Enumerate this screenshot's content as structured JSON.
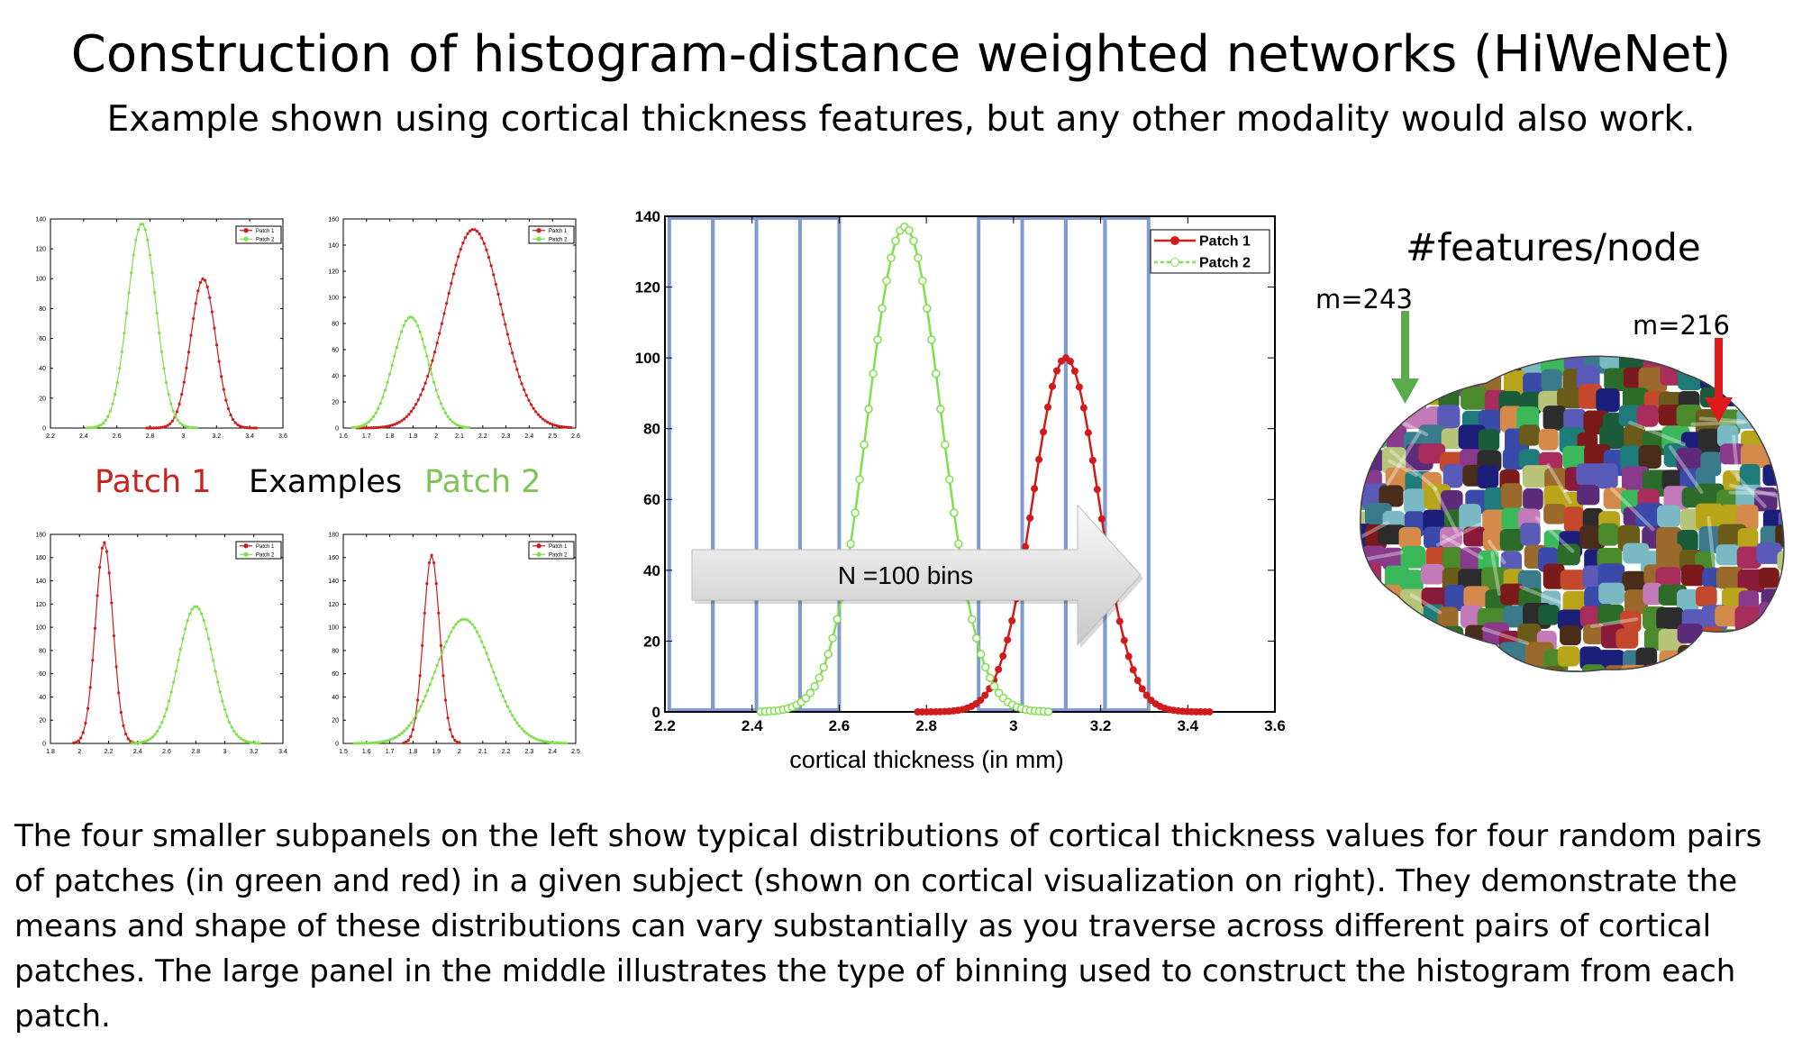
{
  "header": {
    "title": "Construction of histogram-distance weighted networks (HiWeNet)",
    "subtitle": "Example shown using cortical thickness features, but any other modality would also work."
  },
  "colors": {
    "patch1": "#d11a1a",
    "patch2": "#7ee04a",
    "bins": "#7f9bd0",
    "arrow_green": "#5aab4c",
    "arrow_red": "#e01a1a"
  },
  "left_panel": {
    "patch1_label": "Patch 1",
    "examples_label": "Examples",
    "patch2_label": "Patch 2"
  },
  "small_plots": [
    {
      "legend": [
        "Patch 1",
        "Patch 2"
      ],
      "xticks": [
        "2.2",
        "2.4",
        "2.6",
        "2.8",
        "3",
        "3.2",
        "3.4",
        "3.6"
      ],
      "yticks": [
        "0",
        "20",
        "40",
        "60",
        "80",
        "100",
        "120",
        "140"
      ]
    },
    {
      "legend": [
        "Patch 1",
        "Patch 2"
      ],
      "xticks": [
        "1.6",
        "1.7",
        "1.8",
        "1.9",
        "2",
        "2.1",
        "2.2",
        "2.3",
        "2.4",
        "2.5",
        "2.6"
      ],
      "yticks": [
        "0",
        "20",
        "40",
        "60",
        "80",
        "100",
        "120",
        "140",
        "160"
      ]
    },
    {
      "legend": [
        "Patch 1",
        "Patch 2"
      ],
      "xticks": [
        "1.8",
        "2",
        "2.2",
        "2.4",
        "2.6",
        "2.8",
        "3",
        "3.2",
        "3.4"
      ],
      "yticks": [
        "0",
        "20",
        "40",
        "60",
        "80",
        "100",
        "120",
        "140",
        "160",
        "180"
      ]
    },
    {
      "legend": [
        "Patch 1",
        "Patch 2"
      ],
      "xticks": [
        "1.5",
        "1.6",
        "1.7",
        "1.8",
        "1.9",
        "2",
        "2.1",
        "2.2",
        "2.3",
        "2.4",
        "2.5"
      ],
      "yticks": [
        "0",
        "20",
        "40",
        "60",
        "80",
        "100",
        "120",
        "140",
        "160",
        "180"
      ]
    }
  ],
  "chart_data": [
    {
      "type": "line",
      "xlabel": "",
      "ylabel": "",
      "xlim": [
        2.2,
        3.6
      ],
      "ylim": [
        0,
        140
      ],
      "series": [
        {
          "name": "Patch 1",
          "color": "#d11a1a",
          "mean": 3.12,
          "sd": 0.075,
          "peak": 100,
          "range": [
            2.78,
            3.44
          ]
        },
        {
          "name": "Patch 2",
          "color": "#7ee04a",
          "mean": 2.75,
          "sd": 0.085,
          "peak": 137,
          "range": [
            2.42,
            3.08
          ]
        }
      ]
    },
    {
      "type": "line",
      "xlabel": "",
      "ylabel": "",
      "xlim": [
        1.6,
        2.6
      ],
      "ylim": [
        0,
        160
      ],
      "series": [
        {
          "name": "Patch 1",
          "color": "#d11a1a",
          "mean": 2.16,
          "sd": 0.12,
          "peak": 152,
          "range": [
            1.66,
            2.58
          ]
        },
        {
          "name": "Patch 2",
          "color": "#7ee04a",
          "mean": 1.89,
          "sd": 0.075,
          "peak": 85,
          "range": [
            1.64,
            2.14
          ]
        }
      ]
    },
    {
      "type": "line",
      "xlabel": "",
      "ylabel": "",
      "xlim": [
        1.8,
        3.4
      ],
      "ylim": [
        0,
        180
      ],
      "series": [
        {
          "name": "Patch 1",
          "color": "#d11a1a",
          "mean": 2.17,
          "sd": 0.06,
          "peak": 173,
          "range": [
            1.96,
            2.4
          ]
        },
        {
          "name": "Patch 2",
          "color": "#7ee04a",
          "mean": 2.8,
          "sd": 0.12,
          "peak": 118,
          "range": [
            2.36,
            3.24
          ]
        }
      ]
    },
    {
      "type": "line",
      "xlabel": "",
      "ylabel": "",
      "xlim": [
        1.5,
        2.5
      ],
      "ylim": [
        0,
        180
      ],
      "series": [
        {
          "name": "Patch 1",
          "color": "#d11a1a",
          "mean": 1.88,
          "sd": 0.035,
          "peak": 162,
          "range": [
            1.76,
            2.0
          ]
        },
        {
          "name": "Patch 2",
          "color": "#7ee04a",
          "mean": 2.02,
          "sd": 0.12,
          "peak": 107,
          "range": [
            1.55,
            2.46
          ]
        }
      ]
    },
    {
      "type": "line",
      "xlabel": "cortical thickness (in mm)",
      "ylabel": "",
      "xlim": [
        2.2,
        3.6
      ],
      "ylim": [
        0,
        140
      ],
      "xticks": [
        "2.2",
        "2.4",
        "2.6",
        "2.8",
        "3",
        "3.2",
        "3.4",
        "3.6"
      ],
      "yticks": [
        "0",
        "20",
        "40",
        "60",
        "80",
        "100",
        "120",
        "140"
      ],
      "legend_position": "top-right",
      "bins_label": "N =100 bins",
      "bin_edges_left": [
        2.21,
        2.31,
        2.41,
        2.51,
        2.6
      ],
      "bin_edges_right": [
        2.92,
        3.02,
        3.12,
        3.21,
        3.31
      ],
      "series": [
        {
          "name": "Patch 1",
          "color": "#d11a1a",
          "mean": 3.12,
          "sd": 0.075,
          "peak": 100,
          "range": [
            2.78,
            3.45
          ]
        },
        {
          "name": "Patch 2",
          "color": "#7ee04a",
          "mean": 2.75,
          "sd": 0.085,
          "peak": 137,
          "range": [
            2.42,
            3.08
          ]
        }
      ]
    }
  ],
  "brain": {
    "title": "#features/node",
    "left_label": "m=243",
    "right_label": "m=216"
  },
  "caption": "The four smaller subpanels on the left show typical distributions of cortical thickness values for four random pairs of patches (in green and red) in a given subject (shown on cortical visualization on right). They demonstrate the means and shape of these distributions can vary substantially as you traverse across different pairs of cortical patches. The large panel in the middle illustrates the type of binning used to construct the histogram from each patch."
}
